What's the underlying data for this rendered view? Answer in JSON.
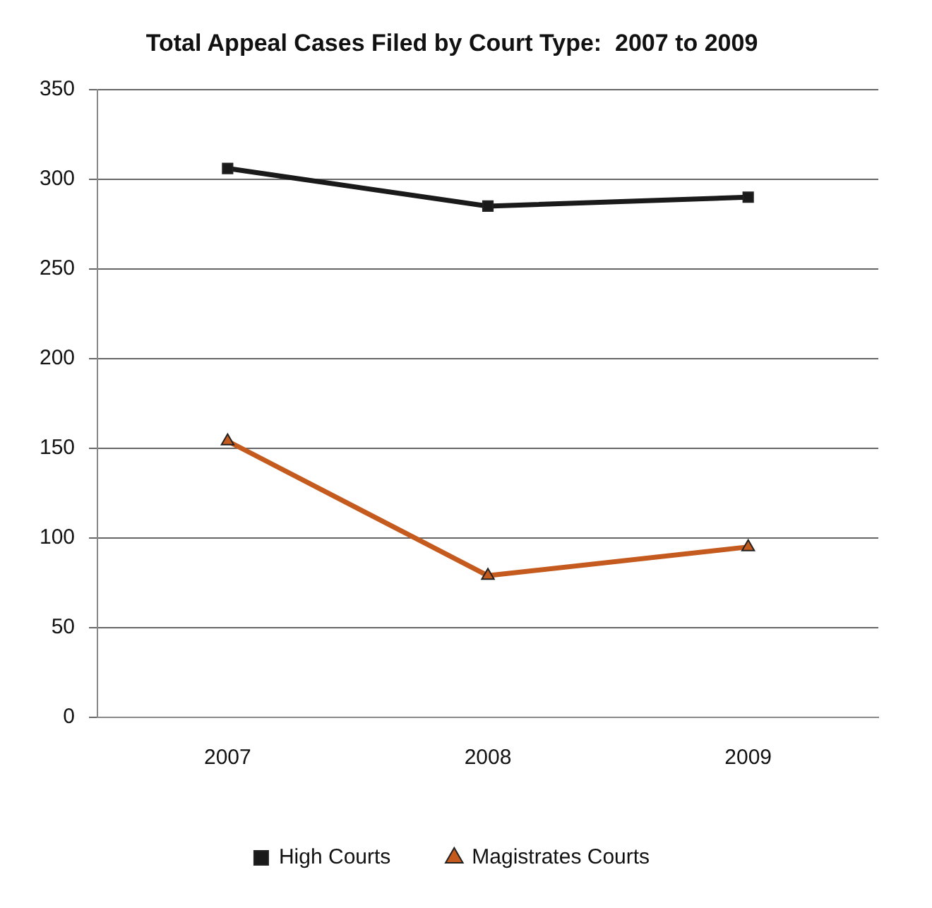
{
  "chart_data": {
    "type": "line",
    "title": "Total Appeal Cases Filed by Court Type:  2007 to 2009",
    "categories": [
      "2007",
      "2008",
      "2009"
    ],
    "series": [
      {
        "name": "High Courts",
        "color": "#1a1a1a",
        "values": [
          306,
          285,
          290
        ],
        "marker": "square"
      },
      {
        "name": "Magistrates Courts",
        "color": "#c55a1e",
        "values": [
          154,
          79,
          95
        ],
        "marker": "triangle"
      }
    ],
    "ylim": [
      0,
      350
    ],
    "yticks": [
      0,
      50,
      100,
      150,
      200,
      250,
      300,
      350
    ],
    "grid": "y",
    "legend": "bottom",
    "line_style": "solid"
  }
}
